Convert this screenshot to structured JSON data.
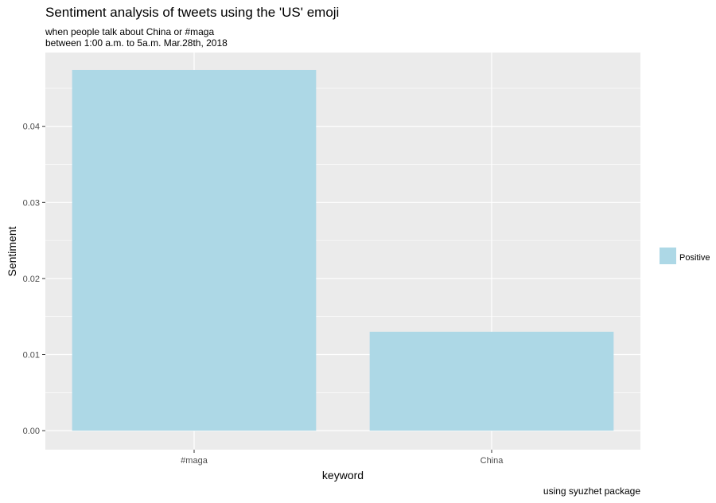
{
  "chart_data": {
    "type": "bar",
    "title": "Sentiment analysis of tweets using the 'US' emoji",
    "subtitle_lines": [
      "when people talk about China or #maga",
      "between 1:00 a.m. to 5a.m. Mar.28th, 2018"
    ],
    "caption": "using syuzhet package",
    "xlabel": "keyword",
    "ylabel": "Sentiment",
    "categories": [
      "#maga",
      "China"
    ],
    "series": [
      {
        "name": "Positive",
        "values": [
          0.0474,
          0.013
        ]
      }
    ],
    "ylim": [
      -0.0025,
      0.0497
    ],
    "yticks": [
      0.0,
      0.01,
      0.02,
      0.03,
      0.04
    ],
    "ytick_labels": [
      "0.00",
      "0.01",
      "0.02",
      "0.03",
      "0.04"
    ],
    "grid": true,
    "legend_position": "right",
    "colors": {
      "bar": "#add8e6",
      "panel": "#ebebeb",
      "grid": "#ffffff",
      "tick_text": "#4d4d4d"
    }
  }
}
